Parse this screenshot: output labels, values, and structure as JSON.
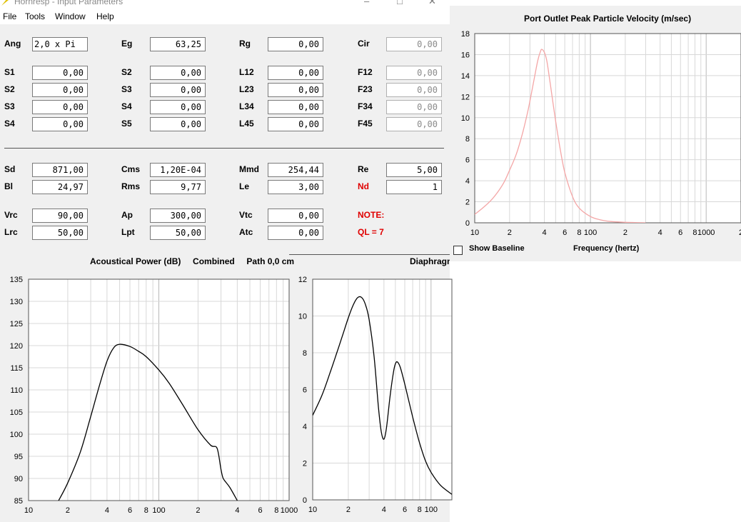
{
  "window": {
    "title": "Hornresp - Input Parameters",
    "menu": [
      "File",
      "Tools",
      "Window",
      "Help"
    ]
  },
  "params": {
    "rows": [
      [
        {
          "label": "Ang",
          "value": "2,0 x Pi"
        },
        {
          "label": "Eg",
          "value": "63,25"
        },
        {
          "label": "Rg",
          "value": "0,00"
        },
        {
          "label": "Cir",
          "value": "0,00"
        }
      ],
      [
        {
          "label": "S1",
          "value": "0,00"
        },
        {
          "label": "S2",
          "value": "0,00"
        },
        {
          "label": "L12",
          "value": "0,00"
        },
        {
          "label": "F12",
          "value": "0,00"
        }
      ],
      [
        {
          "label": "S2",
          "value": "0,00"
        },
        {
          "label": "S3",
          "value": "0,00"
        },
        {
          "label": "L23",
          "value": "0,00"
        },
        {
          "label": "F23",
          "value": "0,00"
        }
      ],
      [
        {
          "label": "S3",
          "value": "0,00"
        },
        {
          "label": "S4",
          "value": "0,00"
        },
        {
          "label": "L34",
          "value": "0,00"
        },
        {
          "label": "F34",
          "value": "0,00"
        }
      ],
      [
        {
          "label": "S4",
          "value": "0,00"
        },
        {
          "label": "S5",
          "value": "0,00"
        },
        {
          "label": "L45",
          "value": "0,00"
        },
        {
          "label": "F45",
          "value": "0,00"
        }
      ],
      [
        {
          "label": "Sd",
          "value": "871,00"
        },
        {
          "label": "Cms",
          "value": "1,20E-04"
        },
        {
          "label": "Mmd",
          "value": "254,44"
        },
        {
          "label": "Re",
          "value": "5,00"
        }
      ],
      [
        {
          "label": "Bl",
          "value": "24,97"
        },
        {
          "label": "Rms",
          "value": "9,77"
        },
        {
          "label": "Le",
          "value": "3,00"
        },
        {
          "label": "Nd",
          "value": "1"
        }
      ],
      [
        {
          "label": "Vrc",
          "value": "90,00"
        },
        {
          "label": "Ap",
          "value": "300,00"
        },
        {
          "label": "Vtc",
          "value": "0,00"
        },
        {
          "label": "NOTE:",
          "value": ""
        }
      ],
      [
        {
          "label": "Lrc",
          "value": "50,00"
        },
        {
          "label": "Lpt",
          "value": "50,00"
        },
        {
          "label": "Atc",
          "value": "0,00"
        },
        {
          "label": "QL = 7",
          "value": ""
        }
      ]
    ]
  },
  "colors": {
    "velocity_curve": "#f4a6a6",
    "power_curve": "#000000",
    "grid": "#d0d0d0",
    "note": "#e00000"
  },
  "port_chart": {
    "title": "Port Outlet Peak Particle Velocity (m/sec)",
    "xlabel": "Frequency (hertz)",
    "baseline_label": "Show Baseline",
    "baseline_checked": false,
    "chart_data": {
      "type": "line",
      "x_scale": "log",
      "xlim": [
        10,
        2000
      ],
      "ylim": [
        0,
        18
      ],
      "y_ticks": [
        0,
        2,
        4,
        6,
        8,
        10,
        12,
        14,
        16,
        18
      ],
      "x_tick_labels": [
        {
          "x": 10,
          "t": "10"
        },
        {
          "x": 20,
          "t": "2"
        },
        {
          "x": 40,
          "t": "4"
        },
        {
          "x": 60,
          "t": "6"
        },
        {
          "x": 80,
          "t": "8"
        },
        {
          "x": 100,
          "t": "100"
        },
        {
          "x": 200,
          "t": "2"
        },
        {
          "x": 400,
          "t": "4"
        },
        {
          "x": 600,
          "t": "6"
        },
        {
          "x": 800,
          "t": "8"
        },
        {
          "x": 1000,
          "t": "1000"
        },
        {
          "x": 2000,
          "t": "2"
        }
      ],
      "x": [
        10,
        12,
        14,
        16,
        18,
        20,
        23,
        26,
        29,
        32,
        35,
        37,
        38,
        40,
        42,
        45,
        50,
        55,
        60,
        70,
        80,
        100,
        120,
        150,
        200,
        300
      ],
      "y": [
        0.8,
        1.5,
        2.2,
        3.0,
        3.9,
        5.0,
        6.6,
        8.6,
        10.8,
        13.2,
        15.4,
        16.3,
        16.5,
        16.2,
        15.4,
        13.2,
        9.7,
        6.9,
        4.8,
        2.5,
        1.4,
        0.6,
        0.3,
        0.12,
        0.05,
        0.0
      ]
    }
  },
  "power_chart": {
    "title_parts": [
      "Acoustical Power (dB)",
      "Combined",
      "Path 0,0 cm"
    ],
    "chart_data": {
      "type": "line",
      "x_scale": "log",
      "xlim": [
        10,
        1000
      ],
      "ylim": [
        85,
        135
      ],
      "y_ticks": [
        85,
        90,
        95,
        100,
        105,
        110,
        115,
        120,
        125,
        130,
        135
      ],
      "x_tick_labels": [
        {
          "x": 10,
          "t": "10"
        },
        {
          "x": 20,
          "t": "2"
        },
        {
          "x": 40,
          "t": "4"
        },
        {
          "x": 60,
          "t": "6"
        },
        {
          "x": 80,
          "t": "8"
        },
        {
          "x": 100,
          "t": "100"
        },
        {
          "x": 200,
          "t": "2"
        },
        {
          "x": 400,
          "t": "4"
        },
        {
          "x": 600,
          "t": "6"
        },
        {
          "x": 800,
          "t": "8"
        },
        {
          "x": 1000,
          "t": "1000"
        }
      ],
      "x": [
        17,
        20,
        25,
        30,
        35,
        40,
        45,
        50,
        60,
        70,
        80,
        100,
        120,
        150,
        200,
        250,
        280,
        300,
        310,
        320,
        350,
        400
      ],
      "y": [
        85,
        89,
        96,
        104,
        111,
        116.5,
        119.5,
        120.3,
        119.8,
        118.7,
        117.5,
        114.5,
        111.5,
        107,
        101,
        97.5,
        96.8,
        92,
        90.2,
        89.5,
        88,
        85
      ]
    }
  },
  "diaphragm_chart": {
    "title": "Diaphragm",
    "chart_data": {
      "type": "line",
      "x_scale": "log",
      "xlim": [
        10,
        150
      ],
      "ylim": [
        0,
        12
      ],
      "y_ticks": [
        0,
        2,
        4,
        6,
        8,
        10,
        12
      ],
      "x_tick_labels": [
        {
          "x": 10,
          "t": "10"
        },
        {
          "x": 20,
          "t": "2"
        },
        {
          "x": 40,
          "t": "4"
        },
        {
          "x": 60,
          "t": "6"
        },
        {
          "x": 80,
          "t": "8"
        },
        {
          "x": 100,
          "t": "100"
        }
      ],
      "x": [
        10,
        12,
        14,
        16,
        18,
        20,
        22,
        24,
        26,
        28,
        30,
        33,
        36,
        38,
        40,
        42,
        45,
        48,
        50,
        52,
        55,
        60,
        70,
        80,
        90,
        100,
        120,
        150
      ],
      "y": [
        4.6,
        5.7,
        6.9,
        8.0,
        9.0,
        9.9,
        10.6,
        11.0,
        11.0,
        10.6,
        9.8,
        7.8,
        5.0,
        3.7,
        3.3,
        3.9,
        5.6,
        6.9,
        7.4,
        7.5,
        7.2,
        6.3,
        4.5,
        3.1,
        2.1,
        1.5,
        0.8,
        0.3
      ]
    }
  }
}
